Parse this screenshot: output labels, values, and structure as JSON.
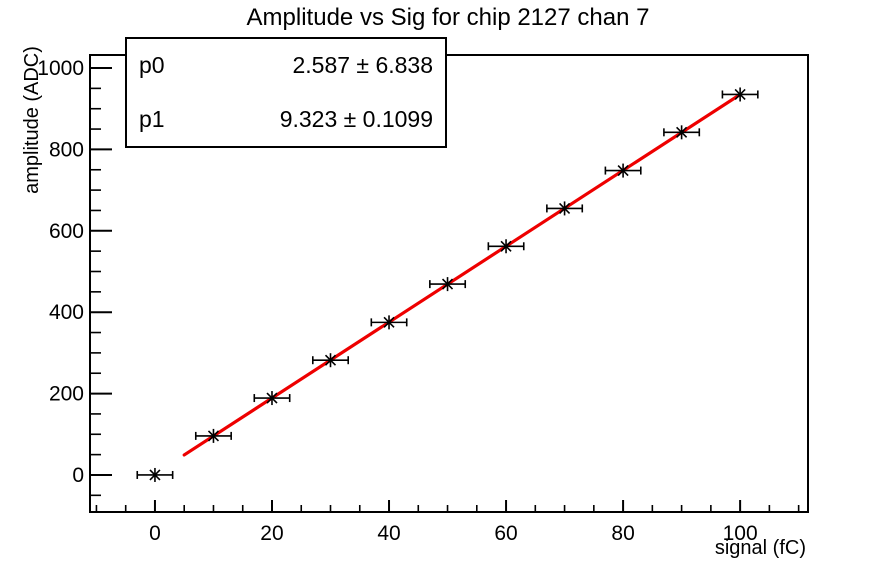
{
  "chart_data": {
    "type": "scatter",
    "title": "Amplitude vs Sig for chip 2127 chan 7",
    "xlabel": "signal (fC)",
    "ylabel": "amplitude (ADC)",
    "x": [
      0,
      10,
      20,
      30,
      40,
      50,
      60,
      70,
      80,
      90,
      100
    ],
    "y": [
      0,
      96,
      189,
      282,
      375,
      469,
      562,
      655,
      748,
      842,
      935
    ],
    "xerr": 2,
    "marker": "star",
    "grid": false,
    "legend_position": "none",
    "xlim": [
      -11.1,
      111.6
    ],
    "ylim": [
      -91,
      1032
    ],
    "x_major_ticks": [
      0,
      20,
      40,
      60,
      80,
      100
    ],
    "x_minor_step": 5,
    "y_major_ticks": [
      0,
      200,
      400,
      600,
      800,
      1000
    ],
    "y_minor_step": 50,
    "fit": {
      "type": "linear",
      "p0": 2.587,
      "p0_err": 6.838,
      "p1": 9.323,
      "p1_err": 0.1099,
      "range": [
        5,
        100
      ]
    },
    "stats": {
      "rows": [
        {
          "name": "p0",
          "value": "2.587 ± 6.838"
        },
        {
          "name": "p1",
          "value": "9.323 ± 0.1099"
        }
      ]
    },
    "colors": {
      "fit_line": "#ee0000",
      "axis": "#000000",
      "marker": "#000000",
      "background": "#ffffff"
    }
  }
}
